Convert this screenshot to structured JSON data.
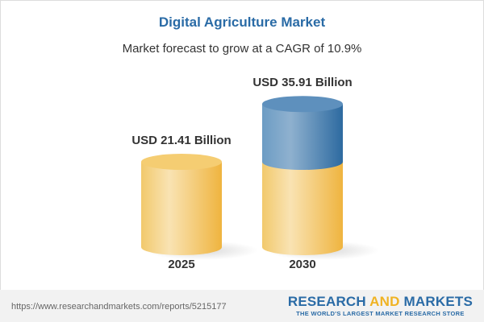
{
  "title": "Digital Agriculture Market",
  "subtitle": "Market forecast to grow at a CAGR of 10.9%",
  "chart_data": {
    "type": "bar",
    "style": "3d-cylinder",
    "categories": [
      "2025",
      "2030"
    ],
    "values": [
      21.41,
      35.91
    ],
    "data_labels": [
      "USD 21.41 Billion",
      "USD 35.91 Billion"
    ],
    "unit": "USD Billion",
    "colors": {
      "base": "#f3c35a",
      "growth": "#4f87b8"
    }
  },
  "footer": {
    "url": "https://www.researchandmarkets.com/reports/5215177",
    "logo_line1_a": "RESEARCH ",
    "logo_line1_b": "AND",
    "logo_line1_c": " MARKETS",
    "logo_line2": "THE WORLD'S LARGEST MARKET RESEARCH STORE"
  }
}
